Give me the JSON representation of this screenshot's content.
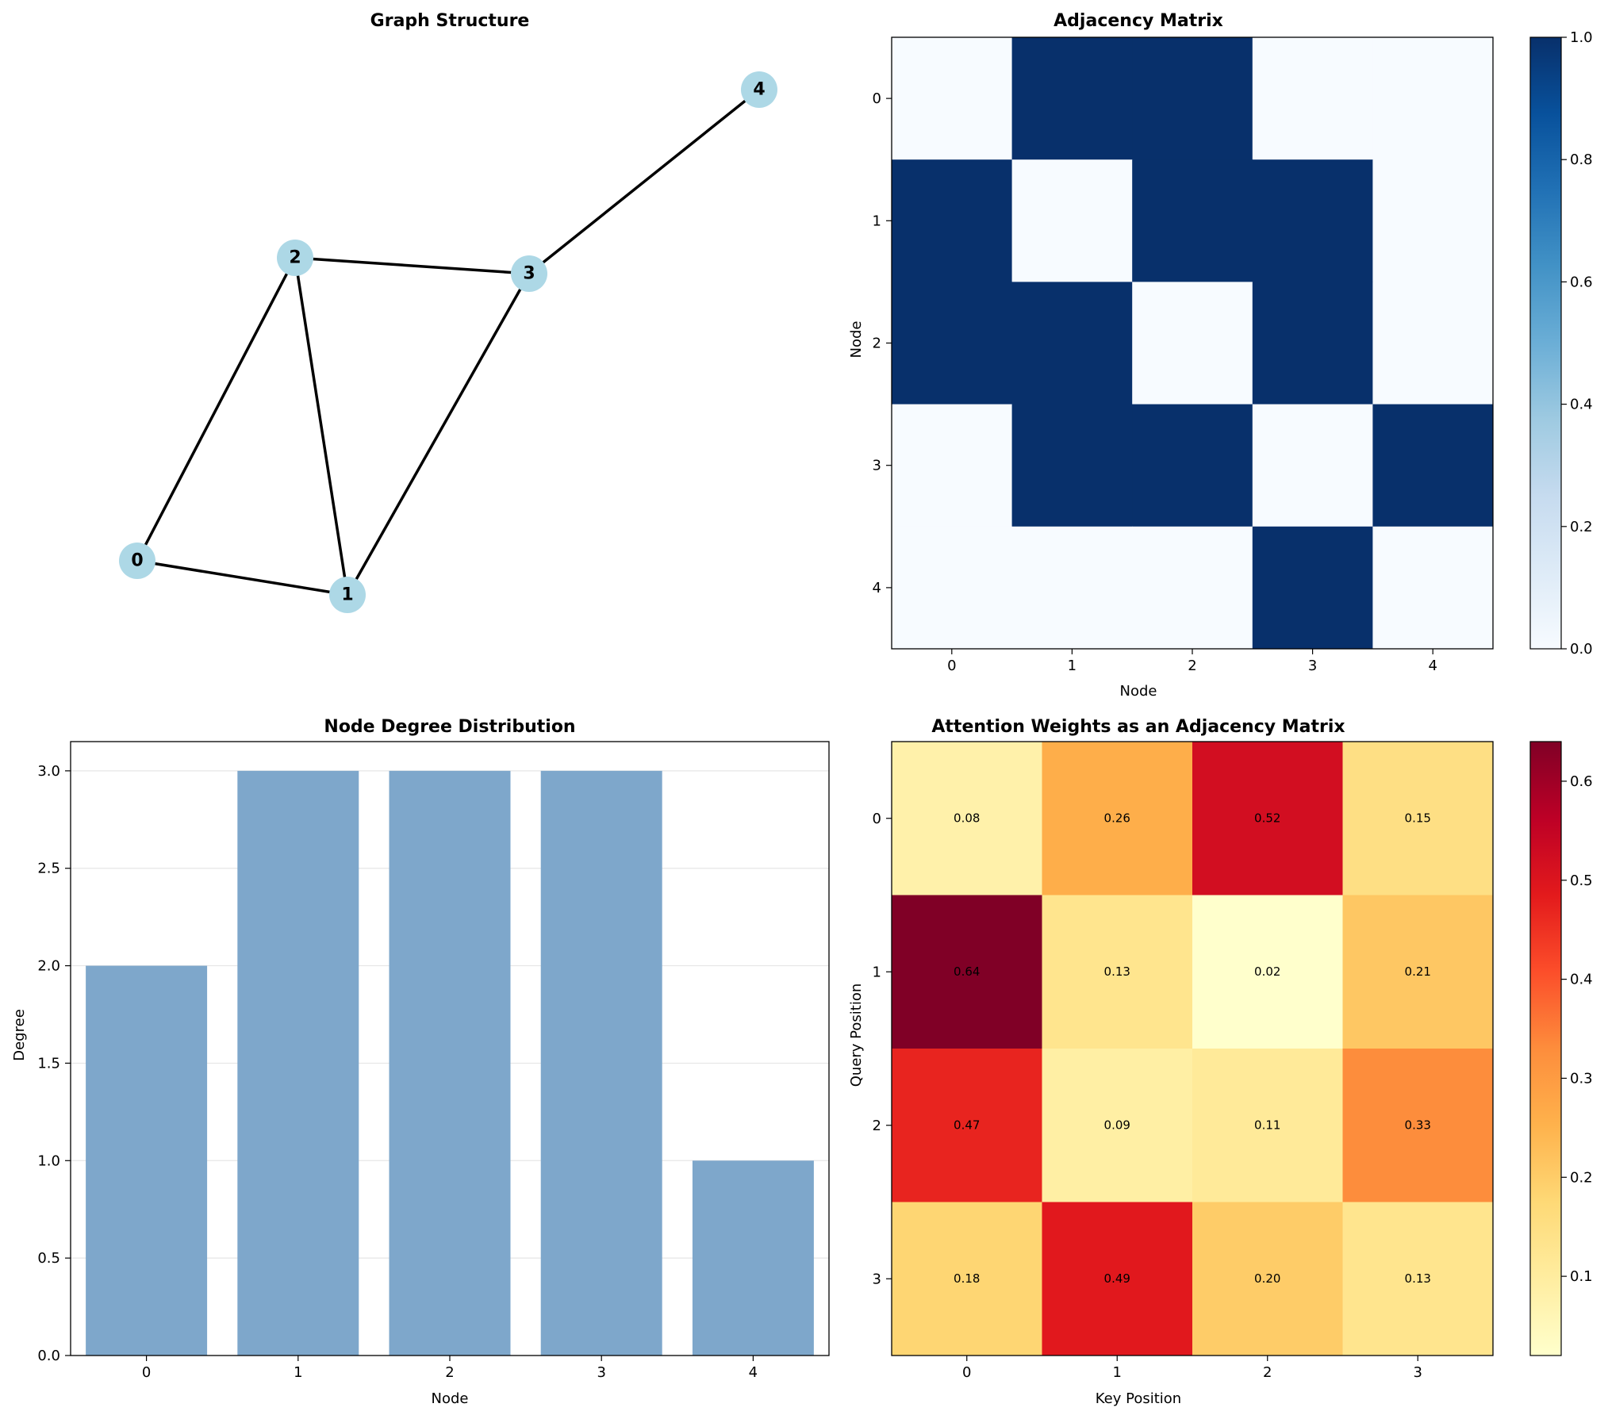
{
  "chart_data": [
    {
      "type": "network",
      "title": "Graph Structure",
      "nodes": [
        {
          "id": "0",
          "label": "0"
        },
        {
          "id": "1",
          "label": "1"
        },
        {
          "id": "2",
          "label": "2"
        },
        {
          "id": "3",
          "label": "3"
        },
        {
          "id": "4",
          "label": "4"
        }
      ],
      "edges": [
        [
          "0",
          "1"
        ],
        [
          "0",
          "2"
        ],
        [
          "1",
          "2"
        ],
        [
          "1",
          "3"
        ],
        [
          "2",
          "3"
        ],
        [
          "3",
          "4"
        ]
      ],
      "node_color": "#add8e6",
      "edge_color": "#000000"
    },
    {
      "type": "heatmap",
      "title": "Adjacency Matrix",
      "xlabel": "Node",
      "ylabel": "Node",
      "x_ticks": [
        "0",
        "1",
        "2",
        "3",
        "4"
      ],
      "y_ticks": [
        "0",
        "1",
        "2",
        "3",
        "4"
      ],
      "values": [
        [
          0,
          1,
          1,
          0,
          0
        ],
        [
          1,
          0,
          1,
          1,
          0
        ],
        [
          1,
          1,
          0,
          1,
          0
        ],
        [
          0,
          1,
          1,
          0,
          1
        ],
        [
          0,
          0,
          0,
          1,
          0
        ]
      ],
      "colormap": "Blues",
      "colorbar_range": [
        0,
        1
      ],
      "colorbar_ticks": [
        "0.0",
        "0.2",
        "0.4",
        "0.6",
        "0.8",
        "1.0"
      ]
    },
    {
      "type": "bar",
      "title": "Node Degree Distribution",
      "xlabel": "Node",
      "ylabel": "Degree",
      "categories": [
        "0",
        "1",
        "2",
        "3",
        "4"
      ],
      "values": [
        2,
        3,
        3,
        3,
        1
      ],
      "ylim": [
        0,
        3.15
      ],
      "y_ticks": [
        "0.0",
        "0.5",
        "1.0",
        "1.5",
        "2.0",
        "2.5",
        "3.0"
      ],
      "bar_color": "#7ea7cb",
      "grid": "horizontal"
    },
    {
      "type": "heatmap",
      "title": "Attention Weights as an Adjacency Matrix",
      "xlabel": "Key Position",
      "ylabel": "Query Position",
      "x_ticks": [
        "0",
        "1",
        "2",
        "3"
      ],
      "y_ticks": [
        "0",
        "1",
        "2",
        "3"
      ],
      "values": [
        [
          0.08,
          0.26,
          0.52,
          0.15
        ],
        [
          0.64,
          0.13,
          0.02,
          0.21
        ],
        [
          0.47,
          0.09,
          0.11,
          0.33
        ],
        [
          0.18,
          0.49,
          0.2,
          0.13
        ]
      ],
      "cell_labels": [
        [
          "0.08",
          "0.26",
          "0.52",
          "0.15"
        ],
        [
          "0.64",
          "0.13",
          "0.02",
          "0.21"
        ],
        [
          "0.47",
          "0.09",
          "0.11",
          "0.33"
        ],
        [
          "0.18",
          "0.49",
          "0.20",
          "0.13"
        ]
      ],
      "colormap": "YlOrRd",
      "colorbar_range": [
        0.02,
        0.64
      ],
      "colorbar_ticks": [
        "0.1",
        "0.2",
        "0.3",
        "0.4",
        "0.5",
        "0.6"
      ]
    }
  ]
}
